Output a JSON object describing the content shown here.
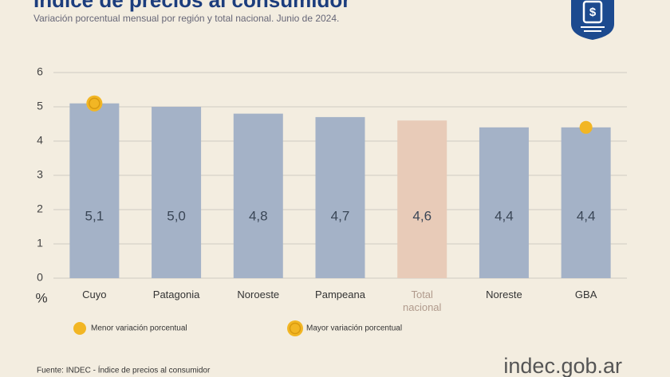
{
  "chart_data": {
    "type": "bar",
    "title": "Índice de precios al consumidor",
    "subtitle": "Variación porcentual mensual por región y total nacional. Junio de 2024.",
    "y_label": "%",
    "categories": [
      "Cuyo",
      "Patagonia",
      "Noroeste",
      "Pampeana",
      "Total nacional",
      "Noreste",
      "GBA"
    ],
    "values": [
      5.1,
      5.0,
      4.8,
      4.7,
      4.6,
      4.4,
      4.4
    ],
    "value_labels": [
      "5,1",
      "5,0",
      "4,8",
      "4,7",
      "4,6",
      "4,4",
      "4,4"
    ],
    "colors": [
      "#a4b2c7",
      "#a4b2c7",
      "#a4b2c7",
      "#a4b2c7",
      "#e8cbb8",
      "#a4b2c7",
      "#a4b2c7"
    ],
    "ylim": [
      0,
      6
    ],
    "yticks": [
      0,
      1,
      2,
      3,
      4,
      5,
      6
    ],
    "grid": true,
    "highlights": [
      {
        "label": "Menor variación porcentual",
        "style": "solid",
        "category": "GBA",
        "color": "#f2b624"
      },
      {
        "label": "Mayor variación porcentual",
        "style": "ring",
        "category": "Cuyo",
        "color": "#f2b624"
      }
    ],
    "source": "Fuente: INDEC - Índice de precios al consumidor",
    "brand": "indec.gob.ar"
  }
}
